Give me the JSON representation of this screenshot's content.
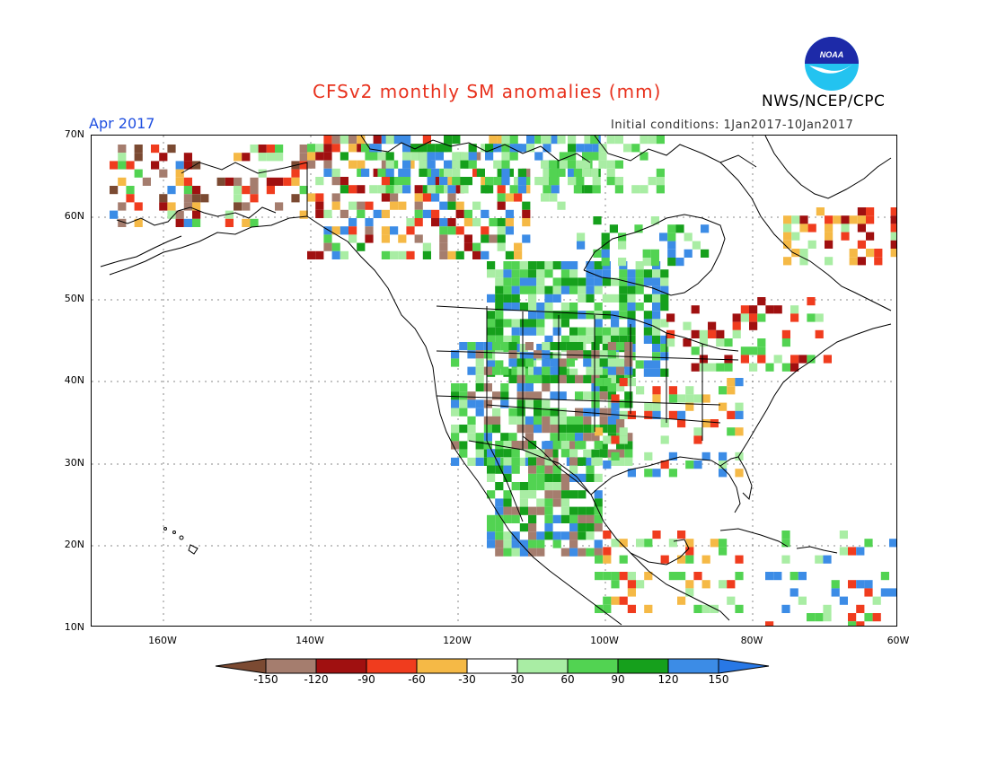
{
  "header": {
    "title": "CFSv2 monthly SM anomalies (mm)",
    "agency": "NWS/NCEP/CPC",
    "period": "Apr 2017",
    "initial_conditions": "Initial conditions: 1Jan2017-10Jan2017",
    "logo_text": "NOAA"
  },
  "map": {
    "lat_labels": [
      "70N",
      "60N",
      "50N",
      "40N",
      "30N",
      "20N",
      "10N"
    ],
    "lon_labels": [
      "160W",
      "140W",
      "120W",
      "100W",
      "80W",
      "60W"
    ]
  },
  "legend": {
    "labels": [
      "-150",
      "-120",
      "-90",
      "-60",
      "-30",
      "30",
      "60",
      "90",
      "120",
      "150"
    ],
    "colors": [
      "#7b4a32",
      "#a57d6e",
      "#a01010",
      "#f03c1e",
      "#f5b946",
      "#ffffff",
      "#a9eda4",
      "#52d352",
      "#16a01c",
      "#3c8ce6",
      "#2878e6"
    ]
  },
  "anomaly_colors": {
    "dark_brown": "#7b4a32",
    "brown": "#a57d6e",
    "dark_red": "#a01010",
    "red": "#f03c1e",
    "orange": "#f5b946",
    "light_green": "#a9eda4",
    "green": "#52d352",
    "dark_green": "#16a01c",
    "blue": "#3c8ce6"
  }
}
